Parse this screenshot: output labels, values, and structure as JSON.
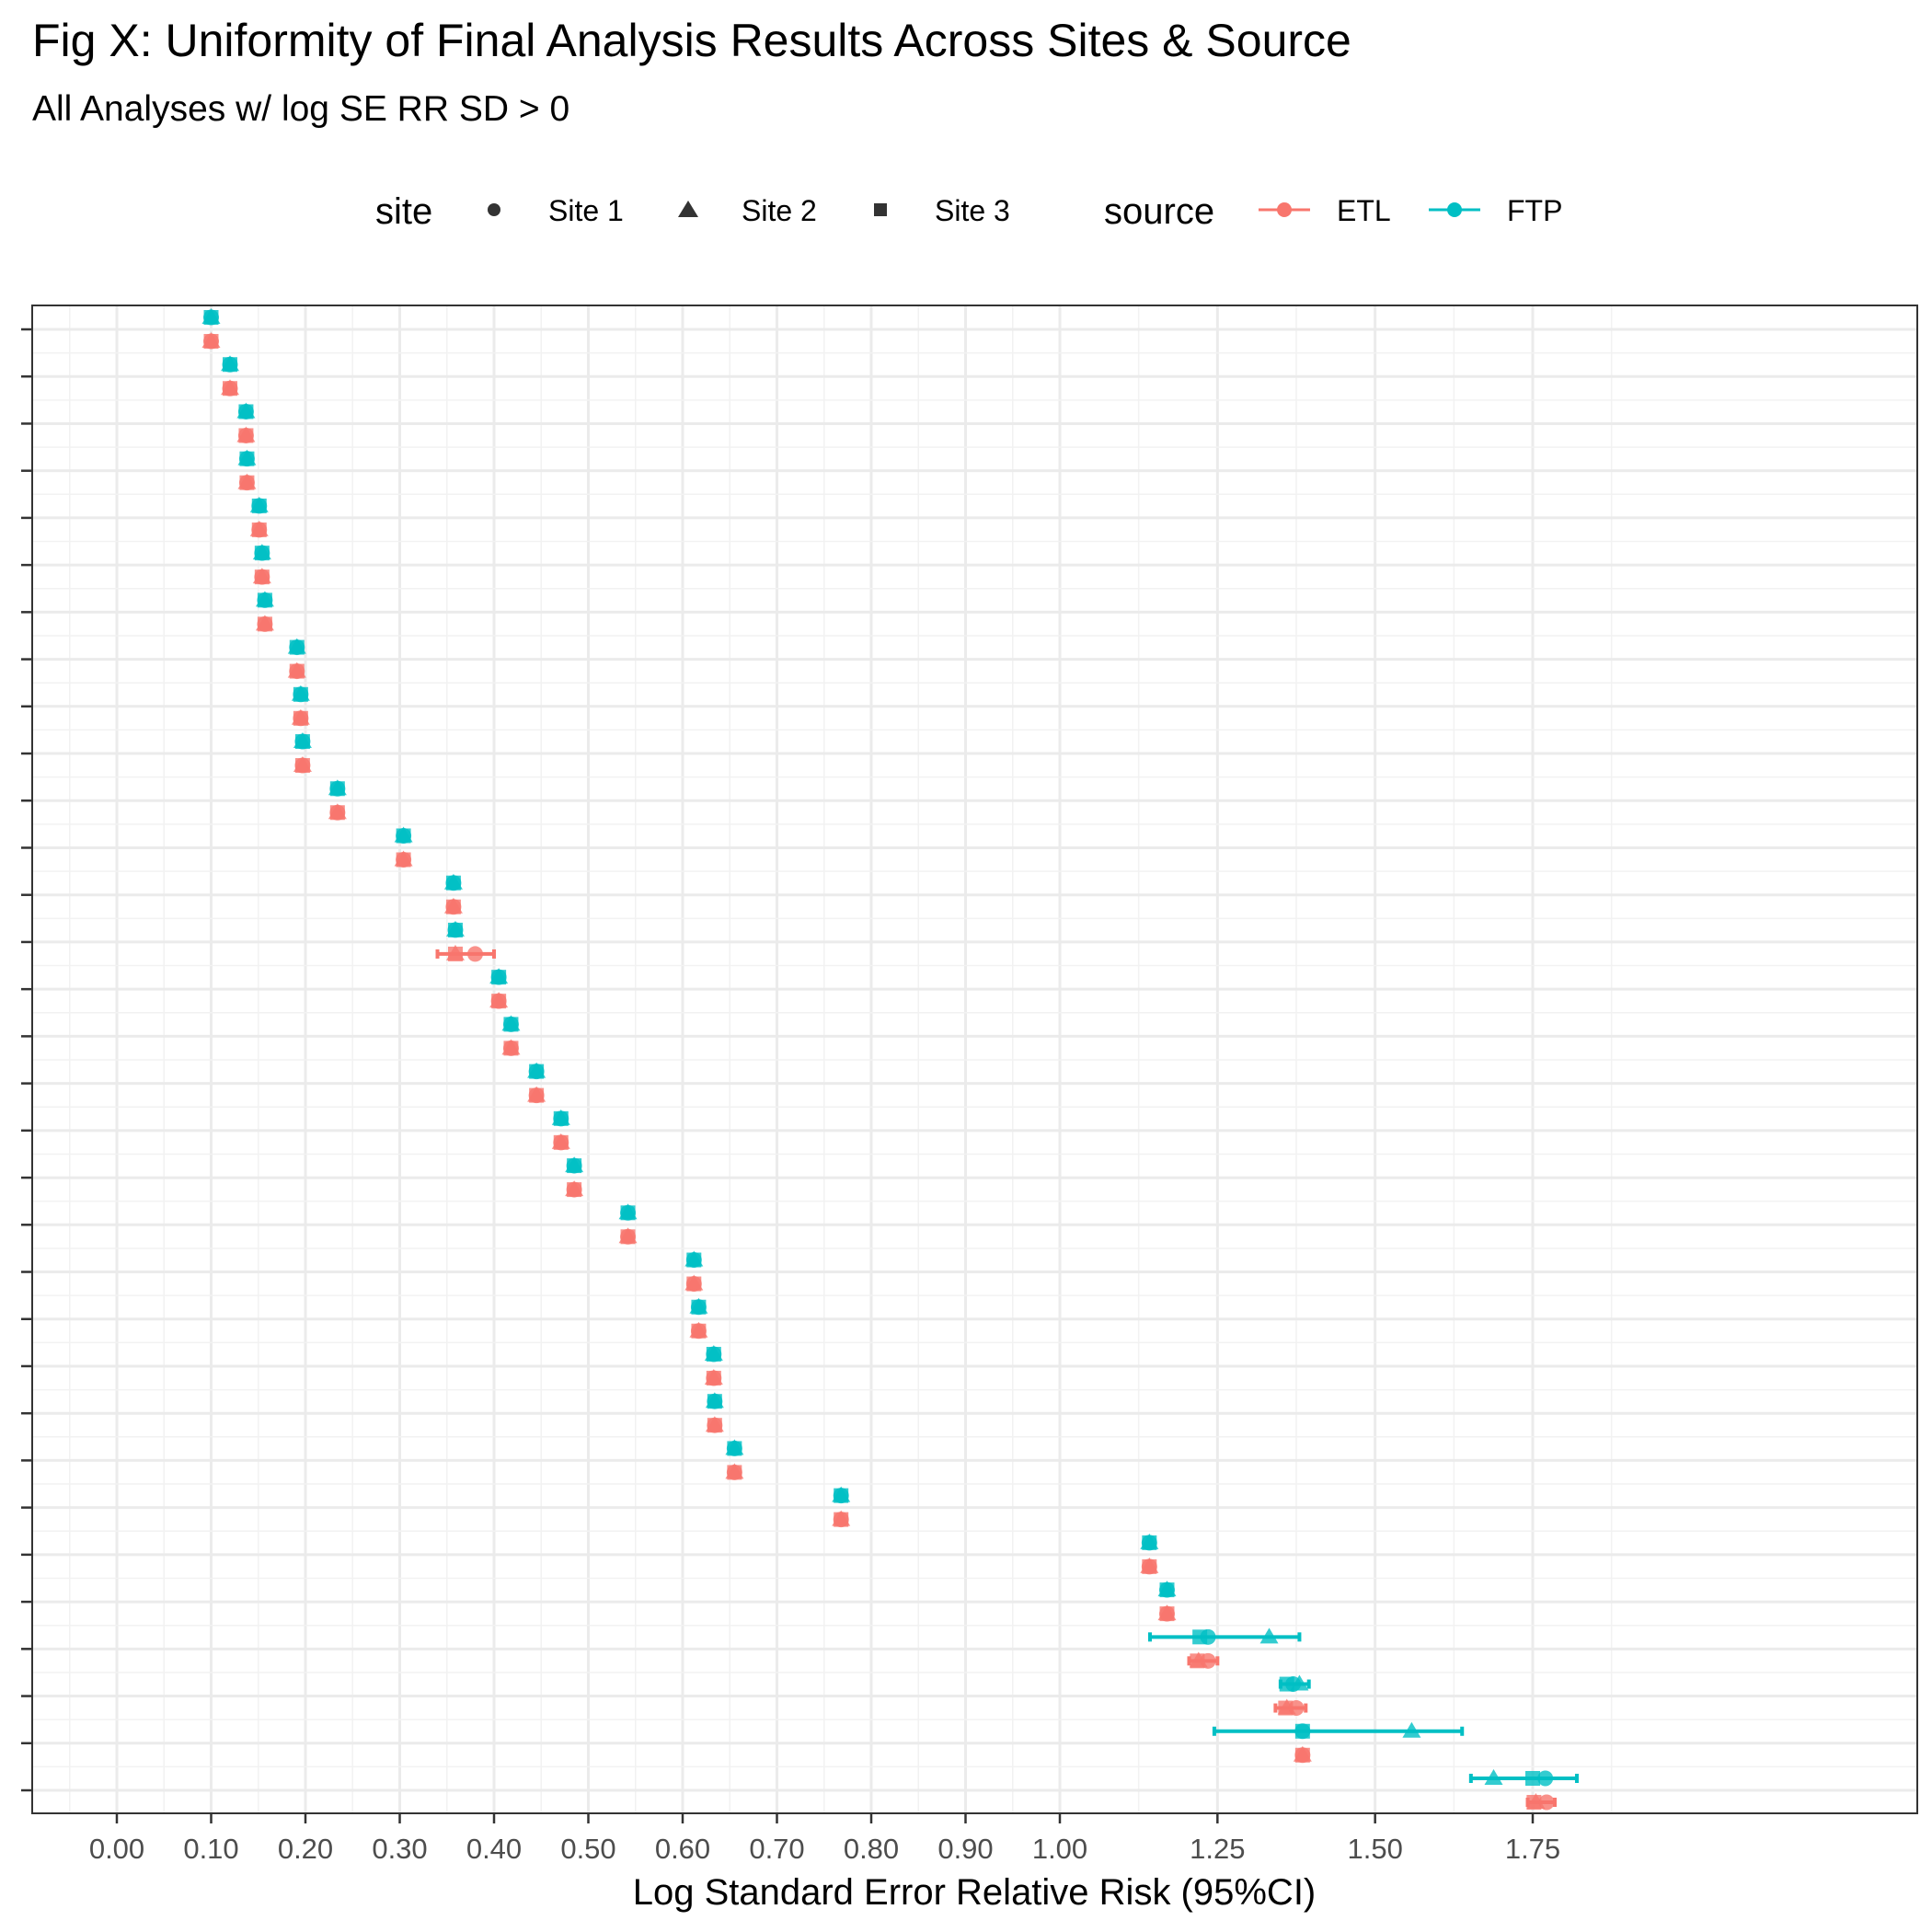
{
  "title": "Fig X: Uniformity of Final Analysis Results Across Sites & Source",
  "subtitle": "All Analyses w/ log SE RR SD > 0",
  "legend": {
    "site_title": "site",
    "site_items": [
      {
        "label": "Site 1",
        "shape": "circle"
      },
      {
        "label": "Site 2",
        "shape": "triangle"
      },
      {
        "label": "Site 3",
        "shape": "square"
      }
    ],
    "source_title": "source",
    "source_items": [
      {
        "label": "ETL",
        "color": "#F8766D"
      },
      {
        "label": "FTP",
        "color": "#00BFC4"
      }
    ]
  },
  "chart_data": {
    "type": "scatter",
    "title": "Fig X: Uniformity of Final Analysis Results Across Sites & Source",
    "subtitle": "All Analyses w/ log SE RR SD > 0",
    "xlabel": "Log Standard Error Relative Risk (95%CI)",
    "ylabel": "",
    "xlim": [
      -0.09,
      1.84
    ],
    "x_ticks": [
      "0.00",
      "0.10",
      "0.20",
      "0.30",
      "0.40",
      "0.50",
      "0.60",
      "0.70",
      "0.80",
      "0.90",
      "1.00",
      "1.25",
      "1.50",
      "1.75"
    ],
    "x_tick_values": [
      0,
      0.1,
      0.2,
      0.3,
      0.4,
      0.5,
      0.6,
      0.7,
      0.8,
      0.9,
      1.0,
      1.25,
      1.5,
      1.75
    ],
    "y_tick_count": 32,
    "grid": true,
    "legend_position": "top",
    "error_bars": "95% CI",
    "series": [
      {
        "name": "FTP",
        "color": "#00BFC4",
        "rows": [
          {
            "v": 0.1
          },
          {
            "v": 0.12
          },
          {
            "v": 0.137
          },
          {
            "v": 0.138
          },
          {
            "v": 0.151
          },
          {
            "v": 0.154
          },
          {
            "v": 0.157
          },
          {
            "v": 0.191
          },
          {
            "v": 0.195
          },
          {
            "v": 0.197
          },
          {
            "v": 0.234
          },
          {
            "v": 0.304
          },
          {
            "v": 0.357
          },
          {
            "v": 0.359
          },
          {
            "v": 0.405
          },
          {
            "v": 0.418
          },
          {
            "v": 0.445
          },
          {
            "v": 0.471
          },
          {
            "v": 0.485
          },
          {
            "v": 0.542
          },
          {
            "v": 0.612
          },
          {
            "v": 0.617
          },
          {
            "v": 0.633
          },
          {
            "v": 0.634
          },
          {
            "v": 0.655
          },
          {
            "v": 0.768
          },
          {
            "v": 1.142
          },
          {
            "v": 1.17
          },
          {
            "s1": 1.235,
            "s2": 1.332,
            "s3": 1.222,
            "lo": 1.143,
            "hi": 1.38
          },
          {
            "s1": 1.37,
            "s2": 1.38,
            "s3": 1.36,
            "lo": 1.35,
            "hi": 1.395
          },
          {
            "s1": 1.385,
            "s2": 1.558,
            "s3": 1.385,
            "lo": 1.245,
            "hi": 1.638
          },
          {
            "s1": 1.77,
            "s2": 1.688,
            "s3": 1.75,
            "lo": 1.652,
            "hi": 1.82
          }
        ]
      },
      {
        "name": "ETL",
        "color": "#F8766D",
        "rows": [
          {
            "v": 0.1
          },
          {
            "v": 0.12
          },
          {
            "v": 0.137
          },
          {
            "v": 0.138
          },
          {
            "v": 0.151
          },
          {
            "v": 0.154
          },
          {
            "v": 0.157
          },
          {
            "v": 0.191
          },
          {
            "v": 0.195
          },
          {
            "v": 0.197
          },
          {
            "v": 0.234
          },
          {
            "v": 0.304
          },
          {
            "v": 0.357
          },
          {
            "s1": 0.38,
            "s2": 0.359,
            "s3": 0.359,
            "lo": 0.34,
            "hi": 0.4
          },
          {
            "v": 0.405
          },
          {
            "v": 0.418
          },
          {
            "v": 0.445
          },
          {
            "v": 0.471
          },
          {
            "v": 0.485
          },
          {
            "v": 0.542
          },
          {
            "v": 0.612
          },
          {
            "v": 0.617
          },
          {
            "v": 0.633
          },
          {
            "v": 0.634
          },
          {
            "v": 0.655
          },
          {
            "v": 0.768
          },
          {
            "v": 1.142
          },
          {
            "v": 1.17
          },
          {
            "s1": 1.235,
            "s2": 1.22,
            "s3": 1.218,
            "lo": 1.205,
            "hi": 1.25
          },
          {
            "s1": 1.375,
            "s2": 1.36,
            "s3": 1.358,
            "lo": 1.342,
            "hi": 1.39
          },
          {
            "v": 1.385
          },
          {
            "s1": 1.772,
            "s2": 1.755,
            "s3": 1.752,
            "lo": 1.742,
            "hi": 1.785
          }
        ]
      }
    ]
  }
}
